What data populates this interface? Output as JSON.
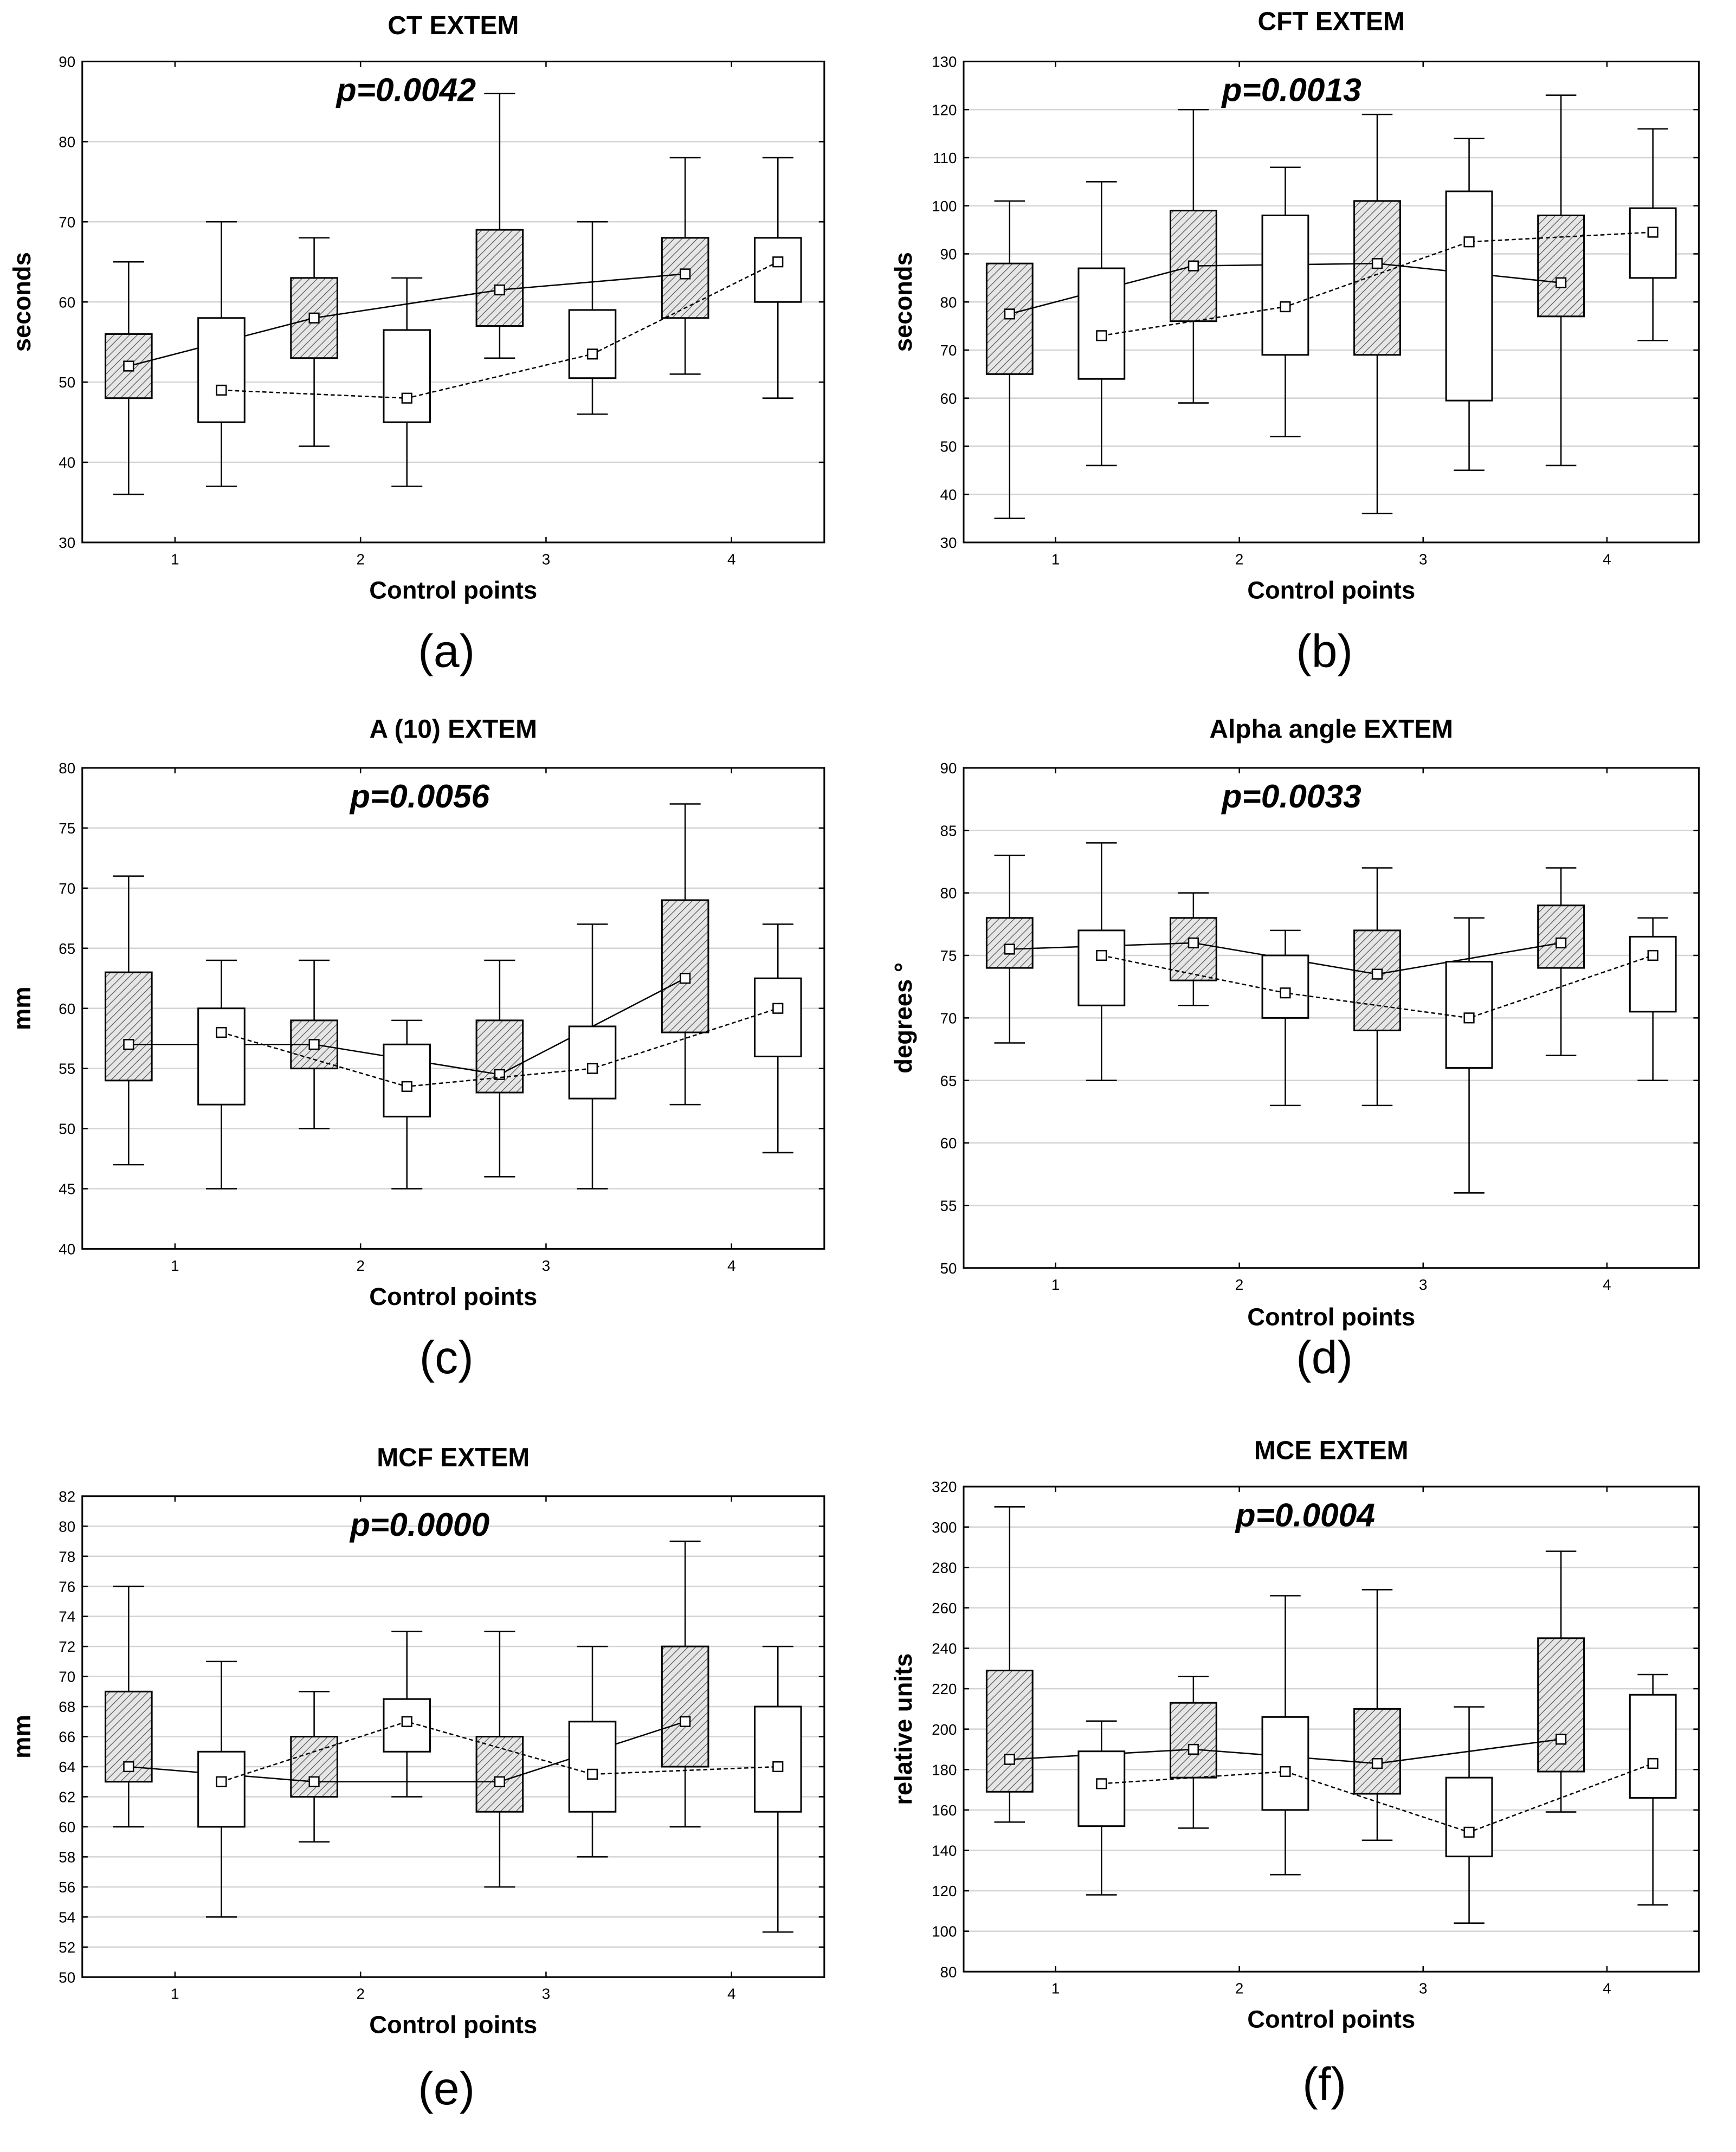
{
  "chart_data": [
    {
      "type": "box",
      "panel_label": "(a)",
      "title": "CT EXTEM",
      "annotation": "p=0.0042",
      "xlabel": "Control points",
      "ylabel": "seconds",
      "categories": [
        "1",
        "2",
        "3",
        "4"
      ],
      "ylim": [
        30,
        90
      ],
      "yticks": [
        30,
        40,
        50,
        60,
        70,
        80,
        90
      ],
      "grid": true,
      "series": [
        {
          "style": "hatched box, solid line",
          "boxes": [
            {
              "min": 36,
              "q1": 48,
              "q3": 56,
              "max": 65,
              "center": 52
            },
            {
              "min": 42,
              "q1": 53,
              "q3": 63,
              "max": 68,
              "center": 58
            },
            {
              "min": 53,
              "q1": 57,
              "q3": 69,
              "max": 86,
              "center": 61.5
            },
            {
              "min": 51,
              "q1": 58,
              "q3": 68,
              "max": 78,
              "center": 63.5
            }
          ]
        },
        {
          "style": "white box, dashed line",
          "boxes": [
            {
              "min": 37,
              "q1": 45,
              "q3": 58,
              "max": 70,
              "center": 49
            },
            {
              "min": 37,
              "q1": 45,
              "q3": 56.5,
              "max": 63,
              "center": 48
            },
            {
              "min": 46,
              "q1": 50.5,
              "q3": 59,
              "max": 70,
              "center": 53.5
            },
            {
              "min": 48,
              "q1": 60,
              "q3": 68,
              "max": 78,
              "center": 65
            }
          ]
        }
      ]
    },
    {
      "type": "box",
      "panel_label": "(b)",
      "title": "CFT EXTEM",
      "annotation": "p=0.0013",
      "xlabel": "Control points",
      "ylabel": "seconds",
      "categories": [
        "1",
        "2",
        "3",
        "4"
      ],
      "ylim": [
        30,
        130
      ],
      "yticks": [
        30,
        40,
        50,
        60,
        70,
        80,
        90,
        100,
        110,
        120,
        130
      ],
      "grid": true,
      "series": [
        {
          "style": "hatched box, solid line",
          "boxes": [
            {
              "min": 35,
              "q1": 65,
              "q3": 88,
              "max": 101,
              "center": 77.5
            },
            {
              "min": 59,
              "q1": 76,
              "q3": 99,
              "max": 120,
              "center": 87.5
            },
            {
              "min": 36,
              "q1": 69,
              "q3": 101,
              "max": 119,
              "center": 88
            },
            {
              "min": 46,
              "q1": 77,
              "q3": 98,
              "max": 123,
              "center": 84
            }
          ]
        },
        {
          "style": "white box, dashed line",
          "boxes": [
            {
              "min": 46,
              "q1": 64,
              "q3": 87,
              "max": 105,
              "center": 73
            },
            {
              "min": 52,
              "q1": 69,
              "q3": 98,
              "max": 108,
              "center": 79
            },
            {
              "min": 45,
              "q1": 59.5,
              "q3": 103,
              "max": 114,
              "center": 92.5
            },
            {
              "min": 72,
              "q1": 85,
              "q3": 99.5,
              "max": 116,
              "center": 94.5
            }
          ]
        }
      ]
    },
    {
      "type": "box",
      "panel_label": "(c)",
      "title": "A (10) EXTEM",
      "annotation": "p=0.0056",
      "xlabel": "Control points",
      "ylabel": "mm",
      "categories": [
        "1",
        "2",
        "3",
        "4"
      ],
      "ylim": [
        40,
        80
      ],
      "yticks": [
        40,
        45,
        50,
        55,
        60,
        65,
        70,
        75,
        80
      ],
      "grid": true,
      "series": [
        {
          "style": "hatched box, solid line",
          "boxes": [
            {
              "min": 47,
              "q1": 54,
              "q3": 63,
              "max": 71,
              "center": 57
            },
            {
              "min": 50,
              "q1": 55,
              "q3": 59,
              "max": 64,
              "center": 57
            },
            {
              "min": 46,
              "q1": 53,
              "q3": 59,
              "max": 64,
              "center": 54.5
            },
            {
              "min": 52,
              "q1": 58,
              "q3": 69,
              "max": 77,
              "center": 62.5
            }
          ]
        },
        {
          "style": "white box, dashed line",
          "boxes": [
            {
              "min": 45,
              "q1": 52,
              "q3": 60,
              "max": 64,
              "center": 58
            },
            {
              "min": 45,
              "q1": 51,
              "q3": 57,
              "max": 59,
              "center": 53.5
            },
            {
              "min": 45,
              "q1": 52.5,
              "q3": 58.5,
              "max": 67,
              "center": 55
            },
            {
              "min": 48,
              "q1": 56,
              "q3": 62.5,
              "max": 67,
              "center": 60
            }
          ]
        }
      ]
    },
    {
      "type": "box",
      "panel_label": "(d)",
      "title": "Alpha angle EXTEM",
      "annotation": "p=0.0033",
      "xlabel": "Control points",
      "ylabel": "degrees °",
      "categories": [
        "1",
        "2",
        "3",
        "4"
      ],
      "ylim": [
        50,
        90
      ],
      "yticks": [
        50,
        55,
        60,
        65,
        70,
        75,
        80,
        85,
        90
      ],
      "grid": true,
      "series": [
        {
          "style": "hatched box, solid line",
          "boxes": [
            {
              "min": 68,
              "q1": 74,
              "q3": 78,
              "max": 83,
              "center": 75.5
            },
            {
              "min": 71,
              "q1": 73,
              "q3": 78,
              "max": 80,
              "center": 76
            },
            {
              "min": 63,
              "q1": 69,
              "q3": 77,
              "max": 82,
              "center": 73.5
            },
            {
              "min": 67,
              "q1": 74,
              "q3": 79,
              "max": 82,
              "center": 76
            }
          ]
        },
        {
          "style": "white box, dashed line",
          "boxes": [
            {
              "min": 65,
              "q1": 71,
              "q3": 77,
              "max": 84,
              "center": 75
            },
            {
              "min": 63,
              "q1": 70,
              "q3": 75,
              "max": 77,
              "center": 72
            },
            {
              "min": 56,
              "q1": 66,
              "q3": 74.5,
              "max": 78,
              "center": 70
            },
            {
              "min": 65,
              "q1": 70.5,
              "q3": 76.5,
              "max": 78,
              "center": 75
            }
          ]
        }
      ]
    },
    {
      "type": "box",
      "panel_label": "(e)",
      "title": "MCF EXTEM",
      "annotation": "p=0.0000",
      "xlabel": "Control points",
      "ylabel": "mm",
      "categories": [
        "1",
        "2",
        "3",
        "4"
      ],
      "ylim": [
        50,
        82
      ],
      "yticks": [
        50,
        52,
        54,
        56,
        58,
        60,
        62,
        64,
        66,
        68,
        70,
        72,
        74,
        76,
        78,
        80,
        82
      ],
      "grid": true,
      "series": [
        {
          "style": "hatched box, solid line",
          "boxes": [
            {
              "min": 60,
              "q1": 63,
              "q3": 69,
              "max": 76,
              "center": 64
            },
            {
              "min": 59,
              "q1": 62,
              "q3": 66,
              "max": 69,
              "center": 63
            },
            {
              "min": 56,
              "q1": 61,
              "q3": 66,
              "max": 73,
              "center": 63
            },
            {
              "min": 60,
              "q1": 64,
              "q3": 72,
              "max": 79,
              "center": 67
            }
          ]
        },
        {
          "style": "white box, dashed line",
          "boxes": [
            {
              "min": 54,
              "q1": 60,
              "q3": 65,
              "max": 71,
              "center": 63
            },
            {
              "min": 62,
              "q1": 65,
              "q3": 68.5,
              "max": 73,
              "center": 67
            },
            {
              "min": 58,
              "q1": 61,
              "q3": 67,
              "max": 72,
              "center": 63.5
            },
            {
              "min": 53,
              "q1": 61,
              "q3": 68,
              "max": 72,
              "center": 64
            }
          ]
        }
      ]
    },
    {
      "type": "box",
      "panel_label": "(f)",
      "title": "MCE EXTEM",
      "annotation": "p=0.0004",
      "xlabel": "Control points",
      "ylabel": "relative units",
      "categories": [
        "1",
        "2",
        "3",
        "4"
      ],
      "ylim": [
        80,
        320
      ],
      "yticks": [
        80,
        100,
        120,
        140,
        160,
        180,
        200,
        220,
        240,
        260,
        280,
        300,
        320
      ],
      "grid": true,
      "series": [
        {
          "style": "hatched box, solid line",
          "boxes": [
            {
              "min": 154,
              "q1": 169,
              "q3": 229,
              "max": 310,
              "center": 185
            },
            {
              "min": 151,
              "q1": 176,
              "q3": 213,
              "max": 226,
              "center": 190
            },
            {
              "min": 145,
              "q1": 168,
              "q3": 210,
              "max": 269,
              "center": 183
            },
            {
              "min": 159,
              "q1": 179,
              "q3": 245,
              "max": 288,
              "center": 195
            }
          ]
        },
        {
          "style": "white box, dashed line",
          "boxes": [
            {
              "min": 118,
              "q1": 152,
              "q3": 189,
              "max": 204,
              "center": 173
            },
            {
              "min": 128,
              "q1": 160,
              "q3": 206,
              "max": 266,
              "center": 179
            },
            {
              "min": 104,
              "q1": 137,
              "q3": 176,
              "max": 211,
              "center": 149
            },
            {
              "min": 113,
              "q1": 166,
              "q3": 217,
              "max": 227,
              "center": 183
            }
          ]
        }
      ]
    }
  ]
}
